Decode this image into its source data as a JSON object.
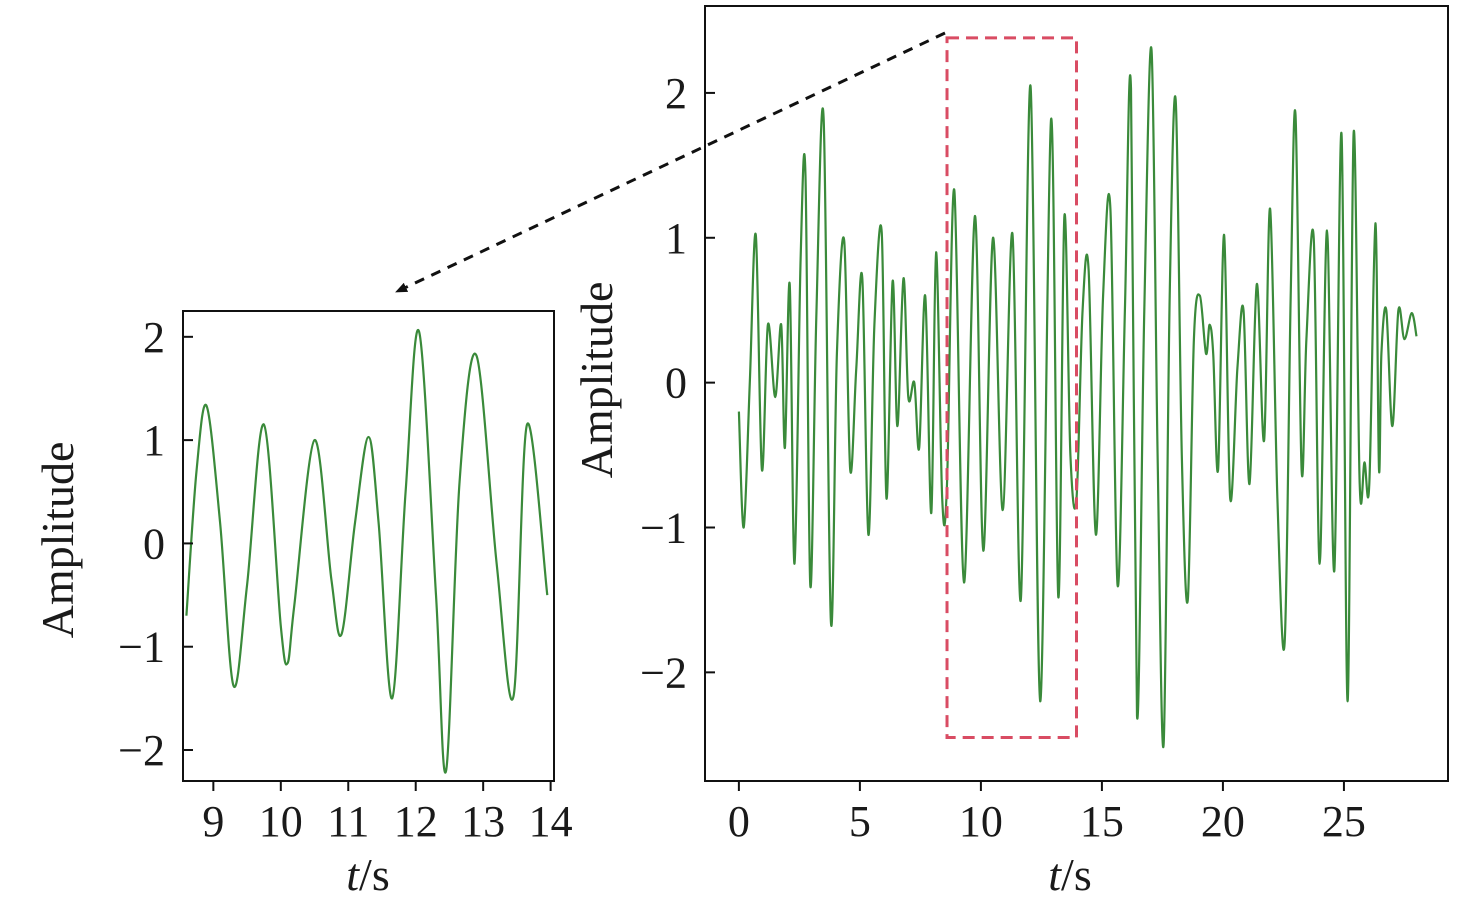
{
  "chart_data": [
    {
      "id": "zoom",
      "type": "line",
      "title": "",
      "xlabel_var": "t",
      "xlabel_unit": "/s",
      "ylabel": "Amplitude",
      "xlim": [
        8.55,
        14.05
      ],
      "ylim": [
        -2.3,
        2.25
      ],
      "xticks": [
        9,
        10,
        11,
        12,
        13,
        14
      ],
      "yticks": [
        2,
        1,
        0,
        -1,
        -2
      ],
      "ytick_labels": [
        "2",
        "1",
        "0",
        "−1",
        "−2"
      ],
      "grid": false,
      "legend": "none",
      "line_color": "#3a8a3a",
      "series": [
        {
          "x": [
            8.6,
            8.75,
            8.9,
            9.1,
            9.3,
            9.5,
            9.75,
            10.0,
            10.1,
            10.2,
            10.5,
            10.75,
            10.9,
            11.1,
            11.3,
            11.45,
            11.65,
            11.85,
            12.05,
            12.3,
            12.45,
            12.65,
            12.9,
            13.2,
            13.45,
            13.65,
            13.95
          ],
          "y": [
            -0.7,
            0.7,
            1.33,
            0.2,
            -1.38,
            -0.4,
            1.15,
            -0.8,
            -1.16,
            -0.6,
            1.0,
            -0.35,
            -0.88,
            0.2,
            1.03,
            0.2,
            -1.5,
            0.5,
            2.05,
            -0.5,
            -2.2,
            0.6,
            1.82,
            -0.2,
            -1.48,
            1.15,
            -0.5
          ]
        }
      ]
    },
    {
      "id": "full",
      "type": "line",
      "title": "",
      "xlabel_var": "t",
      "xlabel_unit": "/s",
      "ylabel": "Amplitude",
      "xlim": [
        -1.4,
        29.3
      ],
      "ylim": [
        -2.75,
        2.6
      ],
      "xticks": [
        0,
        5,
        10,
        15,
        20,
        25
      ],
      "yticks": [
        2,
        1,
        0,
        -1,
        -2
      ],
      "ytick_labels": [
        "2",
        "1",
        "0",
        "−1",
        "−2"
      ],
      "grid": false,
      "legend": "none",
      "line_color": "#3a8a3a",
      "highlight_box": {
        "x0": 8.6,
        "x1": 13.95,
        "y0": -2.45,
        "y1": 2.38,
        "color": "#d94c63"
      },
      "series": [
        {
          "x": [
            0.0,
            0.2,
            0.45,
            0.7,
            0.95,
            1.2,
            1.5,
            1.75,
            1.9,
            2.1,
            2.3,
            2.55,
            2.75,
            2.95,
            3.2,
            3.5,
            3.8,
            4.05,
            4.35,
            4.6,
            4.85,
            5.1,
            5.35,
            5.6,
            5.9,
            6.1,
            6.35,
            6.55,
            6.8,
            7.0,
            7.25,
            7.45,
            7.7,
            7.95,
            8.15,
            8.4,
            8.6,
            8.9,
            9.3,
            9.75,
            10.1,
            10.5,
            10.9,
            11.3,
            11.65,
            12.05,
            12.45,
            12.9,
            13.2,
            13.45,
            13.7,
            13.95,
            14.2,
            14.45,
            14.75,
            15.05,
            15.35,
            15.65,
            15.95,
            16.2,
            16.45,
            16.75,
            17.05,
            17.3,
            17.55,
            17.8,
            18.05,
            18.3,
            18.55,
            18.8,
            19.05,
            19.3,
            19.45,
            19.6,
            19.8,
            20.05,
            20.3,
            20.6,
            20.85,
            21.1,
            21.4,
            21.7,
            21.95,
            22.25,
            22.55,
            22.8,
            23.0,
            23.25,
            23.45,
            23.75,
            24.0,
            24.3,
            24.6,
            24.9,
            25.15,
            25.4,
            25.65,
            25.85,
            26.05,
            26.3,
            26.45,
            26.55,
            26.75,
            27.0,
            27.25,
            27.5,
            27.8,
            28.0
          ],
          "y": [
            -0.2,
            -1.0,
            0.0,
            1.02,
            -0.6,
            0.4,
            -0.1,
            0.4,
            -0.45,
            0.68,
            -1.25,
            0.85,
            1.45,
            -1.4,
            0.45,
            1.83,
            -1.65,
            0.2,
            0.98,
            -0.6,
            0.1,
            0.72,
            -1.05,
            0.4,
            1.04,
            -0.8,
            0.7,
            -0.3,
            0.72,
            -0.1,
            0.0,
            -0.45,
            0.6,
            -0.9,
            0.9,
            -0.8,
            -0.7,
            1.33,
            -1.38,
            1.15,
            -1.16,
            1.0,
            -0.88,
            1.03,
            -1.5,
            2.05,
            -2.2,
            1.82,
            -1.48,
            1.15,
            -0.5,
            -0.8,
            0.5,
            0.78,
            -1.05,
            0.6,
            1.2,
            -1.4,
            0.5,
            2.03,
            -2.3,
            0.5,
            2.3,
            -0.5,
            -2.5,
            0.6,
            1.95,
            -0.5,
            -1.5,
            0.3,
            0.6,
            0.2,
            0.4,
            0.2,
            -0.6,
            1.02,
            -0.8,
            0.1,
            0.5,
            -0.7,
            0.68,
            -0.4,
            1.2,
            -0.8,
            -1.8,
            0.6,
            1.85,
            -0.6,
            0.3,
            1.0,
            -1.25,
            1.05,
            -1.3,
            1.72,
            -2.2,
            1.72,
            -0.7,
            -0.55,
            -0.7,
            1.1,
            -0.6,
            0.2,
            0.5,
            -0.3,
            0.5,
            0.3,
            0.48,
            0.32
          ]
        }
      ]
    }
  ]
}
